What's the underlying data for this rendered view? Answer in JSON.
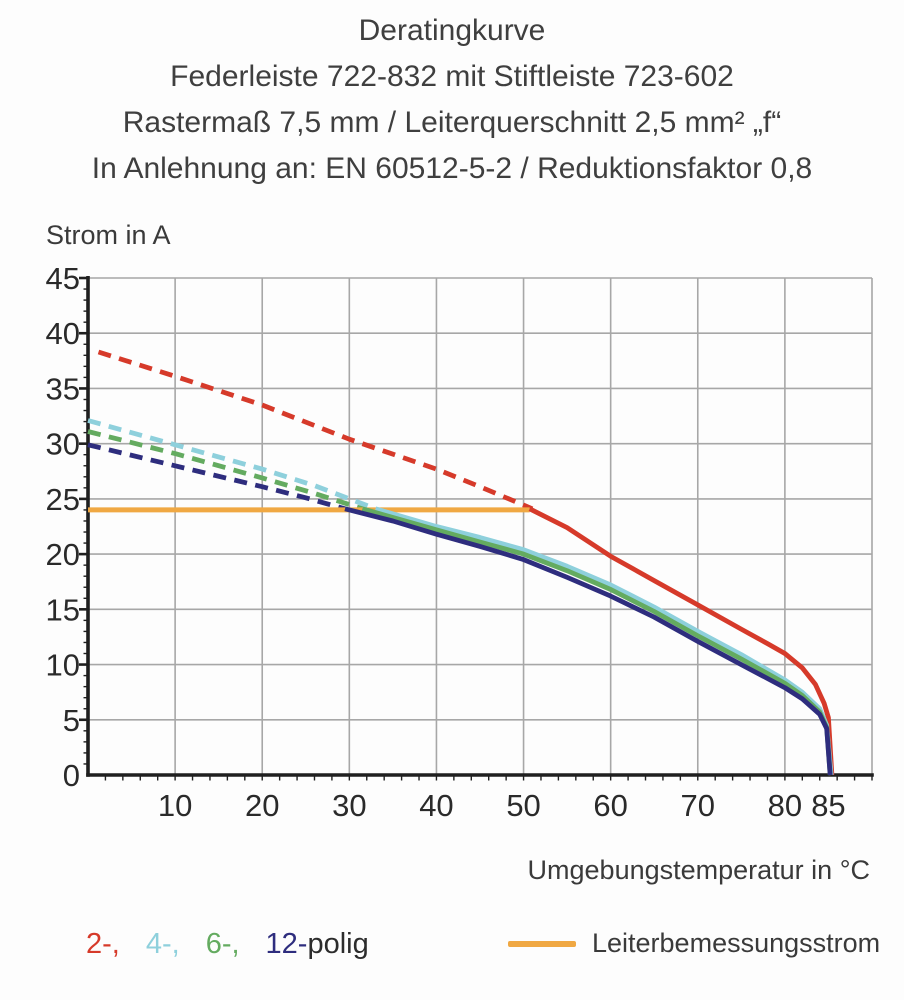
{
  "title": {
    "line1": "Deratingkurve",
    "line2": "Federleiste 722-832 mit Stiftleiste 723-602",
    "line3": "Rastermaß 7,5 mm / Leiterquerschnitt 2,5 mm² „f“",
    "line4": "In Anlehnung an: EN 60512-5-2 / Reduktionsfaktor 0,8"
  },
  "axes": {
    "ylabel": "Strom in A",
    "xlabel": "Umgebungstemperatur in °C"
  },
  "colors": {
    "pole2": "#d63a2a",
    "pole4": "#8ed0dc",
    "pole6": "#64ab60",
    "pole12": "#2e2d7e",
    "rated_current": "#f0a843",
    "grid": "#a7a7a7",
    "axis": "#1f1f1f",
    "tick_text": "#2a2a2a"
  },
  "chart_data": {
    "type": "line",
    "title": "Deratingkurve",
    "xlabel": "Umgebungstemperatur in °C",
    "ylabel": "Strom in A",
    "xlim": [
      0,
      90
    ],
    "ylim": [
      0,
      45
    ],
    "x_ticks": [
      10,
      20,
      30,
      40,
      50,
      60,
      70,
      80,
      85
    ],
    "y_ticks": [
      0,
      5,
      10,
      15,
      20,
      25,
      30,
      35,
      40,
      45
    ],
    "x_minor_step": 2,
    "y_minor_step": 1,
    "grid": true,
    "rated_current_A": 24,
    "series": [
      {
        "name": "2-polig derated (dashed)",
        "color": "#d63a2a",
        "style": "dashed",
        "points": [
          [
            1.2,
            38.3
          ],
          [
            10,
            36.1
          ],
          [
            20,
            33.5
          ],
          [
            30,
            30.4
          ],
          [
            40,
            27.7
          ],
          [
            45,
            26.1
          ],
          [
            51,
            24.1
          ]
        ]
      },
      {
        "name": "4-polig derated (dashed)",
        "color": "#8ed0dc",
        "style": "dashed",
        "points": [
          [
            0,
            32.1
          ],
          [
            10,
            29.9
          ],
          [
            20,
            27.7
          ],
          [
            26,
            26.2
          ],
          [
            33,
            24.1
          ]
        ]
      },
      {
        "name": "6-polig derated (dashed)",
        "color": "#64ab60",
        "style": "dashed",
        "points": [
          [
            0,
            31.1
          ],
          [
            10,
            29.1
          ],
          [
            20,
            26.9
          ],
          [
            26,
            25.5
          ],
          [
            31.5,
            24.1
          ]
        ]
      },
      {
        "name": "12-polig derated (dashed)",
        "color": "#2e2d7e",
        "style": "dashed",
        "points": [
          [
            0,
            29.9
          ],
          [
            10,
            28.0
          ],
          [
            20,
            26.1
          ],
          [
            25,
            25.1
          ],
          [
            29.5,
            24.1
          ]
        ]
      },
      {
        "name": "Leiterbemessungsstrom",
        "color": "#f0a843",
        "style": "solid",
        "width": 5,
        "points": [
          [
            0,
            24
          ],
          [
            50.7,
            24
          ]
        ]
      },
      {
        "name": "2-polig",
        "color": "#d63a2a",
        "style": "solid",
        "points": [
          [
            50.7,
            24.1
          ],
          [
            55,
            22.4
          ],
          [
            60,
            19.8
          ],
          [
            65,
            17.6
          ],
          [
            70,
            15.4
          ],
          [
            75,
            13.2
          ],
          [
            78,
            11.9
          ],
          [
            80,
            11.0
          ],
          [
            82,
            9.7
          ],
          [
            83.5,
            8.2
          ],
          [
            84.5,
            6.5
          ],
          [
            85,
            5.2
          ],
          [
            85.4,
            0
          ]
        ]
      },
      {
        "name": "4-polig",
        "color": "#8ed0dc",
        "style": "solid",
        "points": [
          [
            33,
            24.1
          ],
          [
            40,
            22.5
          ],
          [
            45,
            21.5
          ],
          [
            50,
            20.4
          ],
          [
            55,
            18.9
          ],
          [
            60,
            17.2
          ],
          [
            65,
            15.2
          ],
          [
            70,
            13.0
          ],
          [
            75,
            10.9
          ],
          [
            80,
            8.6
          ],
          [
            82,
            7.5
          ],
          [
            84,
            6.0
          ],
          [
            84.8,
            4.5
          ],
          [
            85.3,
            0
          ]
        ]
      },
      {
        "name": "6-polig",
        "color": "#64ab60",
        "style": "solid",
        "points": [
          [
            31.5,
            24.1
          ],
          [
            40,
            22.2
          ],
          [
            45,
            21.1
          ],
          [
            50,
            20.0
          ],
          [
            55,
            18.5
          ],
          [
            60,
            16.8
          ],
          [
            65,
            14.8
          ],
          [
            70,
            12.6
          ],
          [
            75,
            10.5
          ],
          [
            80,
            8.3
          ],
          [
            82,
            7.2
          ],
          [
            84,
            5.7
          ],
          [
            84.8,
            4.3
          ],
          [
            85.2,
            0
          ]
        ]
      },
      {
        "name": "12-polig",
        "color": "#2e2d7e",
        "style": "solid",
        "points": [
          [
            29.5,
            24.1
          ],
          [
            35,
            23.0
          ],
          [
            40,
            21.8
          ],
          [
            45,
            20.7
          ],
          [
            50,
            19.5
          ],
          [
            55,
            17.9
          ],
          [
            60,
            16.2
          ],
          [
            65,
            14.3
          ],
          [
            70,
            12.1
          ],
          [
            75,
            10.0
          ],
          [
            80,
            7.9
          ],
          [
            82,
            6.9
          ],
          [
            84,
            5.5
          ],
          [
            84.8,
            4.2
          ],
          [
            85.2,
            0
          ]
        ]
      }
    ]
  },
  "legend": {
    "poles": [
      {
        "label": "2-,",
        "color": "#d63a2a"
      },
      {
        "label": "4-,",
        "color": "#8ed0dc"
      },
      {
        "label": "6-,",
        "color": "#64ab60"
      },
      {
        "label": "12-",
        "color": "#2e2d7e"
      }
    ],
    "poles_suffix": "polig",
    "rated": {
      "label": "Leiterbemessungsstrom",
      "color": "#f0a843"
    }
  }
}
